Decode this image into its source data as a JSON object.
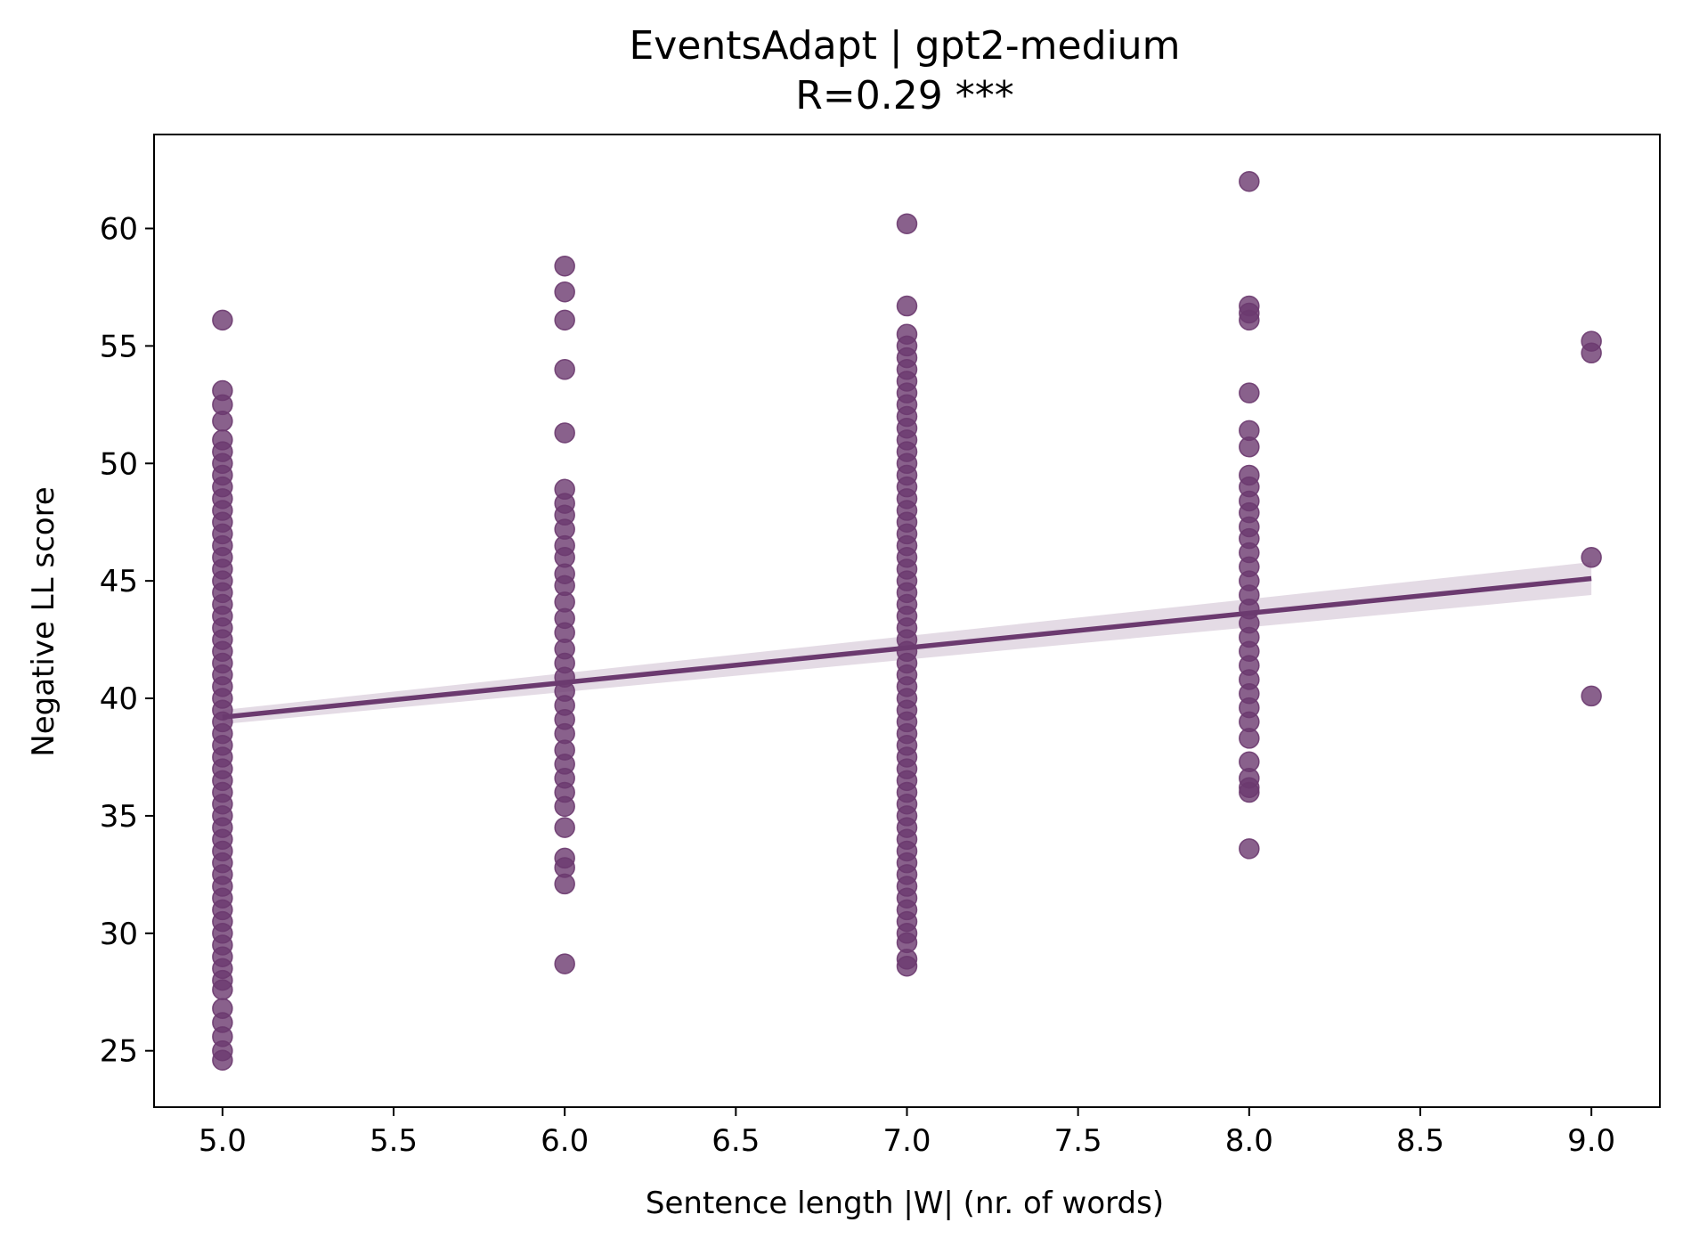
{
  "chart_data": {
    "type": "scatter",
    "title": "EventsAdapt | gpt2-medium",
    "subtitle": "R=0.29 ***",
    "xlabel": "Sentence length |W| (nr. of words)",
    "ylabel": "Negative LL score",
    "xlim": [
      4.8,
      9.2
    ],
    "ylim": [
      22.6,
      64.0
    ],
    "x_ticks": [
      5.0,
      5.5,
      6.0,
      6.5,
      7.0,
      7.5,
      8.0,
      8.5,
      9.0
    ],
    "x_tick_labels": [
      "5.0",
      "5.5",
      "6.0",
      "6.5",
      "7.0",
      "7.5",
      "8.0",
      "8.5",
      "9.0"
    ],
    "y_ticks": [
      25,
      30,
      35,
      40,
      45,
      50,
      55,
      60
    ],
    "y_tick_labels": [
      "25",
      "30",
      "35",
      "40",
      "45",
      "50",
      "55",
      "60"
    ],
    "grid": false,
    "color": "#6b3a6f",
    "series": [
      {
        "points": [
          {
            "x": 5,
            "y": 56.1
          },
          {
            "x": 5,
            "y": 53.1
          },
          {
            "x": 5,
            "y": 52.5
          },
          {
            "x": 5,
            "y": 51.8
          },
          {
            "x": 5,
            "y": 51.0
          },
          {
            "x": 5,
            "y": 50.5
          },
          {
            "x": 5,
            "y": 50.0
          },
          {
            "x": 5,
            "y": 49.5
          },
          {
            "x": 5,
            "y": 49.0
          },
          {
            "x": 5,
            "y": 48.5
          },
          {
            "x": 5,
            "y": 48.0
          },
          {
            "x": 5,
            "y": 47.5
          },
          {
            "x": 5,
            "y": 47.0
          },
          {
            "x": 5,
            "y": 46.5
          },
          {
            "x": 5,
            "y": 46.0
          },
          {
            "x": 5,
            "y": 45.5
          },
          {
            "x": 5,
            "y": 45.0
          },
          {
            "x": 5,
            "y": 44.5
          },
          {
            "x": 5,
            "y": 44.0
          },
          {
            "x": 5,
            "y": 43.5
          },
          {
            "x": 5,
            "y": 43.0
          },
          {
            "x": 5,
            "y": 42.5
          },
          {
            "x": 5,
            "y": 42.0
          },
          {
            "x": 5,
            "y": 41.5
          },
          {
            "x": 5,
            "y": 41.0
          },
          {
            "x": 5,
            "y": 40.5
          },
          {
            "x": 5,
            "y": 40.0
          },
          {
            "x": 5,
            "y": 39.5
          },
          {
            "x": 5,
            "y": 39.0
          },
          {
            "x": 5,
            "y": 38.5
          },
          {
            "x": 5,
            "y": 38.0
          },
          {
            "x": 5,
            "y": 37.5
          },
          {
            "x": 5,
            "y": 37.0
          },
          {
            "x": 5,
            "y": 36.5
          },
          {
            "x": 5,
            "y": 36.0
          },
          {
            "x": 5,
            "y": 35.5
          },
          {
            "x": 5,
            "y": 35.0
          },
          {
            "x": 5,
            "y": 34.5
          },
          {
            "x": 5,
            "y": 34.0
          },
          {
            "x": 5,
            "y": 33.5
          },
          {
            "x": 5,
            "y": 33.0
          },
          {
            "x": 5,
            "y": 32.5
          },
          {
            "x": 5,
            "y": 32.0
          },
          {
            "x": 5,
            "y": 31.5
          },
          {
            "x": 5,
            "y": 31.0
          },
          {
            "x": 5,
            "y": 30.5
          },
          {
            "x": 5,
            "y": 30.0
          },
          {
            "x": 5,
            "y": 29.5
          },
          {
            "x": 5,
            "y": 29.0
          },
          {
            "x": 5,
            "y": 28.5
          },
          {
            "x": 5,
            "y": 28.0
          },
          {
            "x": 5,
            "y": 27.6
          },
          {
            "x": 5,
            "y": 26.8
          },
          {
            "x": 5,
            "y": 26.2
          },
          {
            "x": 5,
            "y": 25.6
          },
          {
            "x": 5,
            "y": 25.0
          },
          {
            "x": 5,
            "y": 24.6
          },
          {
            "x": 6,
            "y": 58.4
          },
          {
            "x": 6,
            "y": 57.3
          },
          {
            "x": 6,
            "y": 56.1
          },
          {
            "x": 6,
            "y": 54.0
          },
          {
            "x": 6,
            "y": 51.3
          },
          {
            "x": 6,
            "y": 48.9
          },
          {
            "x": 6,
            "y": 48.3
          },
          {
            "x": 6,
            "y": 47.8
          },
          {
            "x": 6,
            "y": 47.2
          },
          {
            "x": 6,
            "y": 46.5
          },
          {
            "x": 6,
            "y": 46.0
          },
          {
            "x": 6,
            "y": 45.3
          },
          {
            "x": 6,
            "y": 44.8
          },
          {
            "x": 6,
            "y": 44.1
          },
          {
            "x": 6,
            "y": 43.4
          },
          {
            "x": 6,
            "y": 42.8
          },
          {
            "x": 6,
            "y": 42.1
          },
          {
            "x": 6,
            "y": 41.5
          },
          {
            "x": 6,
            "y": 40.9
          },
          {
            "x": 6,
            "y": 40.3
          },
          {
            "x": 6,
            "y": 39.7
          },
          {
            "x": 6,
            "y": 39.1
          },
          {
            "x": 6,
            "y": 38.5
          },
          {
            "x": 6,
            "y": 37.8
          },
          {
            "x": 6,
            "y": 37.2
          },
          {
            "x": 6,
            "y": 36.6
          },
          {
            "x": 6,
            "y": 36.0
          },
          {
            "x": 6,
            "y": 35.4
          },
          {
            "x": 6,
            "y": 34.5
          },
          {
            "x": 6,
            "y": 33.2
          },
          {
            "x": 6,
            "y": 32.8
          },
          {
            "x": 6,
            "y": 32.1
          },
          {
            "x": 6,
            "y": 28.7
          },
          {
            "x": 7,
            "y": 60.2
          },
          {
            "x": 7,
            "y": 56.7
          },
          {
            "x": 7,
            "y": 55.5
          },
          {
            "x": 7,
            "y": 55.0
          },
          {
            "x": 7,
            "y": 54.5
          },
          {
            "x": 7,
            "y": 54.0
          },
          {
            "x": 7,
            "y": 53.5
          },
          {
            "x": 7,
            "y": 53.0
          },
          {
            "x": 7,
            "y": 52.5
          },
          {
            "x": 7,
            "y": 52.0
          },
          {
            "x": 7,
            "y": 51.5
          },
          {
            "x": 7,
            "y": 51.0
          },
          {
            "x": 7,
            "y": 50.5
          },
          {
            "x": 7,
            "y": 50.0
          },
          {
            "x": 7,
            "y": 49.5
          },
          {
            "x": 7,
            "y": 49.0
          },
          {
            "x": 7,
            "y": 48.5
          },
          {
            "x": 7,
            "y": 48.0
          },
          {
            "x": 7,
            "y": 47.5
          },
          {
            "x": 7,
            "y": 47.0
          },
          {
            "x": 7,
            "y": 46.5
          },
          {
            "x": 7,
            "y": 46.0
          },
          {
            "x": 7,
            "y": 45.5
          },
          {
            "x": 7,
            "y": 45.0
          },
          {
            "x": 7,
            "y": 44.5
          },
          {
            "x": 7,
            "y": 44.0
          },
          {
            "x": 7,
            "y": 43.5
          },
          {
            "x": 7,
            "y": 43.0
          },
          {
            "x": 7,
            "y": 42.5
          },
          {
            "x": 7,
            "y": 42.0
          },
          {
            "x": 7,
            "y": 41.5
          },
          {
            "x": 7,
            "y": 41.0
          },
          {
            "x": 7,
            "y": 40.5
          },
          {
            "x": 7,
            "y": 40.0
          },
          {
            "x": 7,
            "y": 39.5
          },
          {
            "x": 7,
            "y": 39.0
          },
          {
            "x": 7,
            "y": 38.5
          },
          {
            "x": 7,
            "y": 38.0
          },
          {
            "x": 7,
            "y": 37.5
          },
          {
            "x": 7,
            "y": 37.0
          },
          {
            "x": 7,
            "y": 36.5
          },
          {
            "x": 7,
            "y": 36.0
          },
          {
            "x": 7,
            "y": 35.5
          },
          {
            "x": 7,
            "y": 35.0
          },
          {
            "x": 7,
            "y": 34.5
          },
          {
            "x": 7,
            "y": 34.0
          },
          {
            "x": 7,
            "y": 33.5
          },
          {
            "x": 7,
            "y": 33.0
          },
          {
            "x": 7,
            "y": 32.5
          },
          {
            "x": 7,
            "y": 32.0
          },
          {
            "x": 7,
            "y": 31.5
          },
          {
            "x": 7,
            "y": 31.0
          },
          {
            "x": 7,
            "y": 30.5
          },
          {
            "x": 7,
            "y": 30.0
          },
          {
            "x": 7,
            "y": 29.6
          },
          {
            "x": 7,
            "y": 28.9
          },
          {
            "x": 7,
            "y": 28.6
          },
          {
            "x": 8,
            "y": 62.0
          },
          {
            "x": 8,
            "y": 56.7
          },
          {
            "x": 8,
            "y": 56.4
          },
          {
            "x": 8,
            "y": 56.1
          },
          {
            "x": 8,
            "y": 53.0
          },
          {
            "x": 8,
            "y": 51.4
          },
          {
            "x": 8,
            "y": 50.7
          },
          {
            "x": 8,
            "y": 49.5
          },
          {
            "x": 8,
            "y": 49.0
          },
          {
            "x": 8,
            "y": 48.4
          },
          {
            "x": 8,
            "y": 47.9
          },
          {
            "x": 8,
            "y": 47.3
          },
          {
            "x": 8,
            "y": 46.8
          },
          {
            "x": 8,
            "y": 46.2
          },
          {
            "x": 8,
            "y": 45.6
          },
          {
            "x": 8,
            "y": 45.0
          },
          {
            "x": 8,
            "y": 44.4
          },
          {
            "x": 8,
            "y": 43.8
          },
          {
            "x": 8,
            "y": 43.2
          },
          {
            "x": 8,
            "y": 42.6
          },
          {
            "x": 8,
            "y": 42.0
          },
          {
            "x": 8,
            "y": 41.4
          },
          {
            "x": 8,
            "y": 40.8
          },
          {
            "x": 8,
            "y": 40.2
          },
          {
            "x": 8,
            "y": 39.6
          },
          {
            "x": 8,
            "y": 39.0
          },
          {
            "x": 8,
            "y": 38.3
          },
          {
            "x": 8,
            "y": 37.3
          },
          {
            "x": 8,
            "y": 36.6
          },
          {
            "x": 8,
            "y": 36.2
          },
          {
            "x": 8,
            "y": 36.0
          },
          {
            "x": 8,
            "y": 33.6
          },
          {
            "x": 9,
            "y": 55.2
          },
          {
            "x": 9,
            "y": 54.7
          },
          {
            "x": 9,
            "y": 46.0
          },
          {
            "x": 9,
            "y": 40.1
          }
        ]
      }
    ],
    "regression": {
      "x": [
        5.0,
        9.0
      ],
      "y": [
        39.2,
        45.1
      ],
      "ci_lower": [
        38.9,
        44.4
      ],
      "ci_upper": [
        39.5,
        45.8
      ]
    }
  }
}
